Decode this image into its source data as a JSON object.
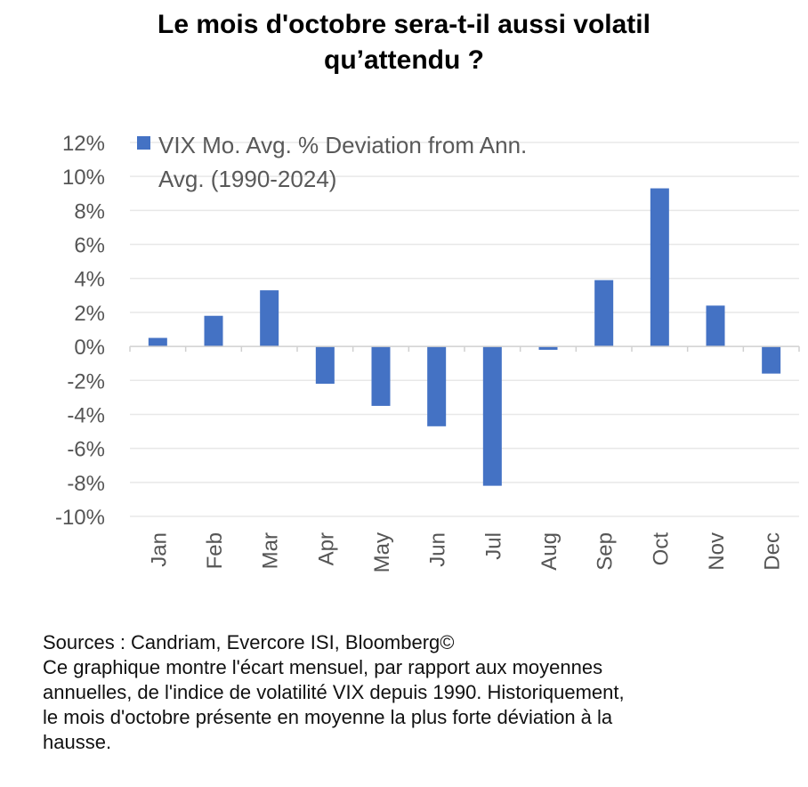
{
  "title_lines": [
    "Le mois d'octobre sera-t-il aussi volatil",
    "qu’attendu ?"
  ],
  "chart_data": {
    "type": "bar",
    "categories": [
      "Jan",
      "Feb",
      "Mar",
      "Apr",
      "May",
      "Jun",
      "Jul",
      "Aug",
      "Sep",
      "Oct",
      "Nov",
      "Dec"
    ],
    "series": [
      {
        "name_lines": [
          "VIX Mo. Avg. % Deviation from Ann.",
          "Avg. (1990-2024)"
        ],
        "values": [
          0.5,
          1.8,
          3.3,
          -2.2,
          -3.5,
          -4.7,
          -8.2,
          -0.2,
          3.9,
          9.3,
          2.4,
          -1.6
        ]
      }
    ],
    "ylim": [
      -10,
      12
    ],
    "yticks": [
      12,
      10,
      8,
      6,
      4,
      2,
      0,
      -2,
      -4,
      -6,
      -8,
      -10
    ],
    "ytick_labels": [
      "12%",
      "10%",
      "8%",
      "6%",
      "4%",
      "2%",
      "0%",
      "-2%",
      "-4%",
      "-6%",
      "-8%",
      "-10%"
    ],
    "grid": true,
    "legend_position": "top-left",
    "bar_color": "#4472C4",
    "grid_color": "#e8e8e8",
    "axis_color": "#d0d0d0"
  },
  "notes": {
    "line1": "Sources : Candriam, Evercore ISI, Bloomberg©",
    "line2": "Ce graphique montre l'écart mensuel, par rapport aux moyennes",
    "line3": "annuelles, de l'indice de volatilité VIX depuis 1990. Historiquement,",
    "line4": "le mois d'octobre présente en moyenne la plus forte déviation à la",
    "line5": "hausse."
  }
}
